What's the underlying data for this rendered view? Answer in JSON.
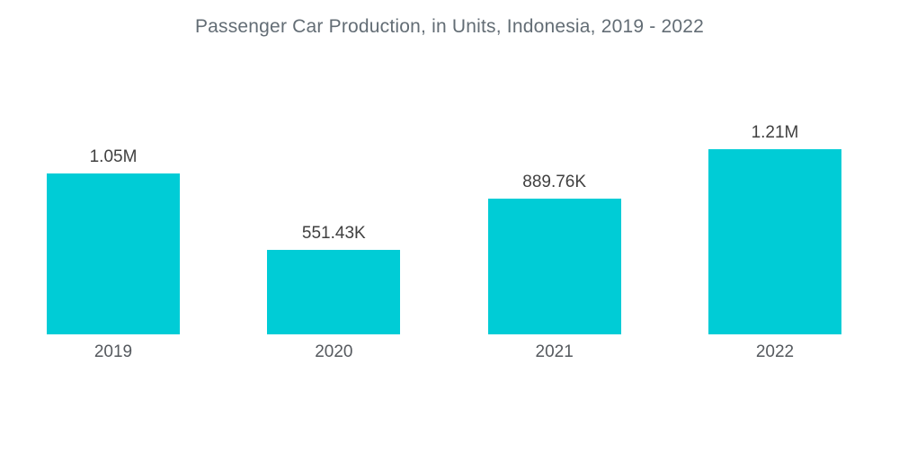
{
  "chart_data": {
    "type": "bar",
    "title": "Passenger Car Production, in Units, Indonesia, 2019 - 2022",
    "categories": [
      "2019",
      "2020",
      "2021",
      "2022"
    ],
    "values": [
      1050000,
      551430,
      889760,
      1210000
    ],
    "value_labels": [
      "1.05M",
      "551.43K",
      "889.76K",
      "1.21M"
    ],
    "xlabel": "",
    "ylabel": "",
    "ylim": [
      0,
      1210000
    ],
    "grid": false,
    "legend": false,
    "bar_color": "#00CCD6",
    "title_color": "#636d75",
    "value_label_color": "#404040",
    "category_label_color": "#55595e",
    "background_color": "#ffffff"
  }
}
